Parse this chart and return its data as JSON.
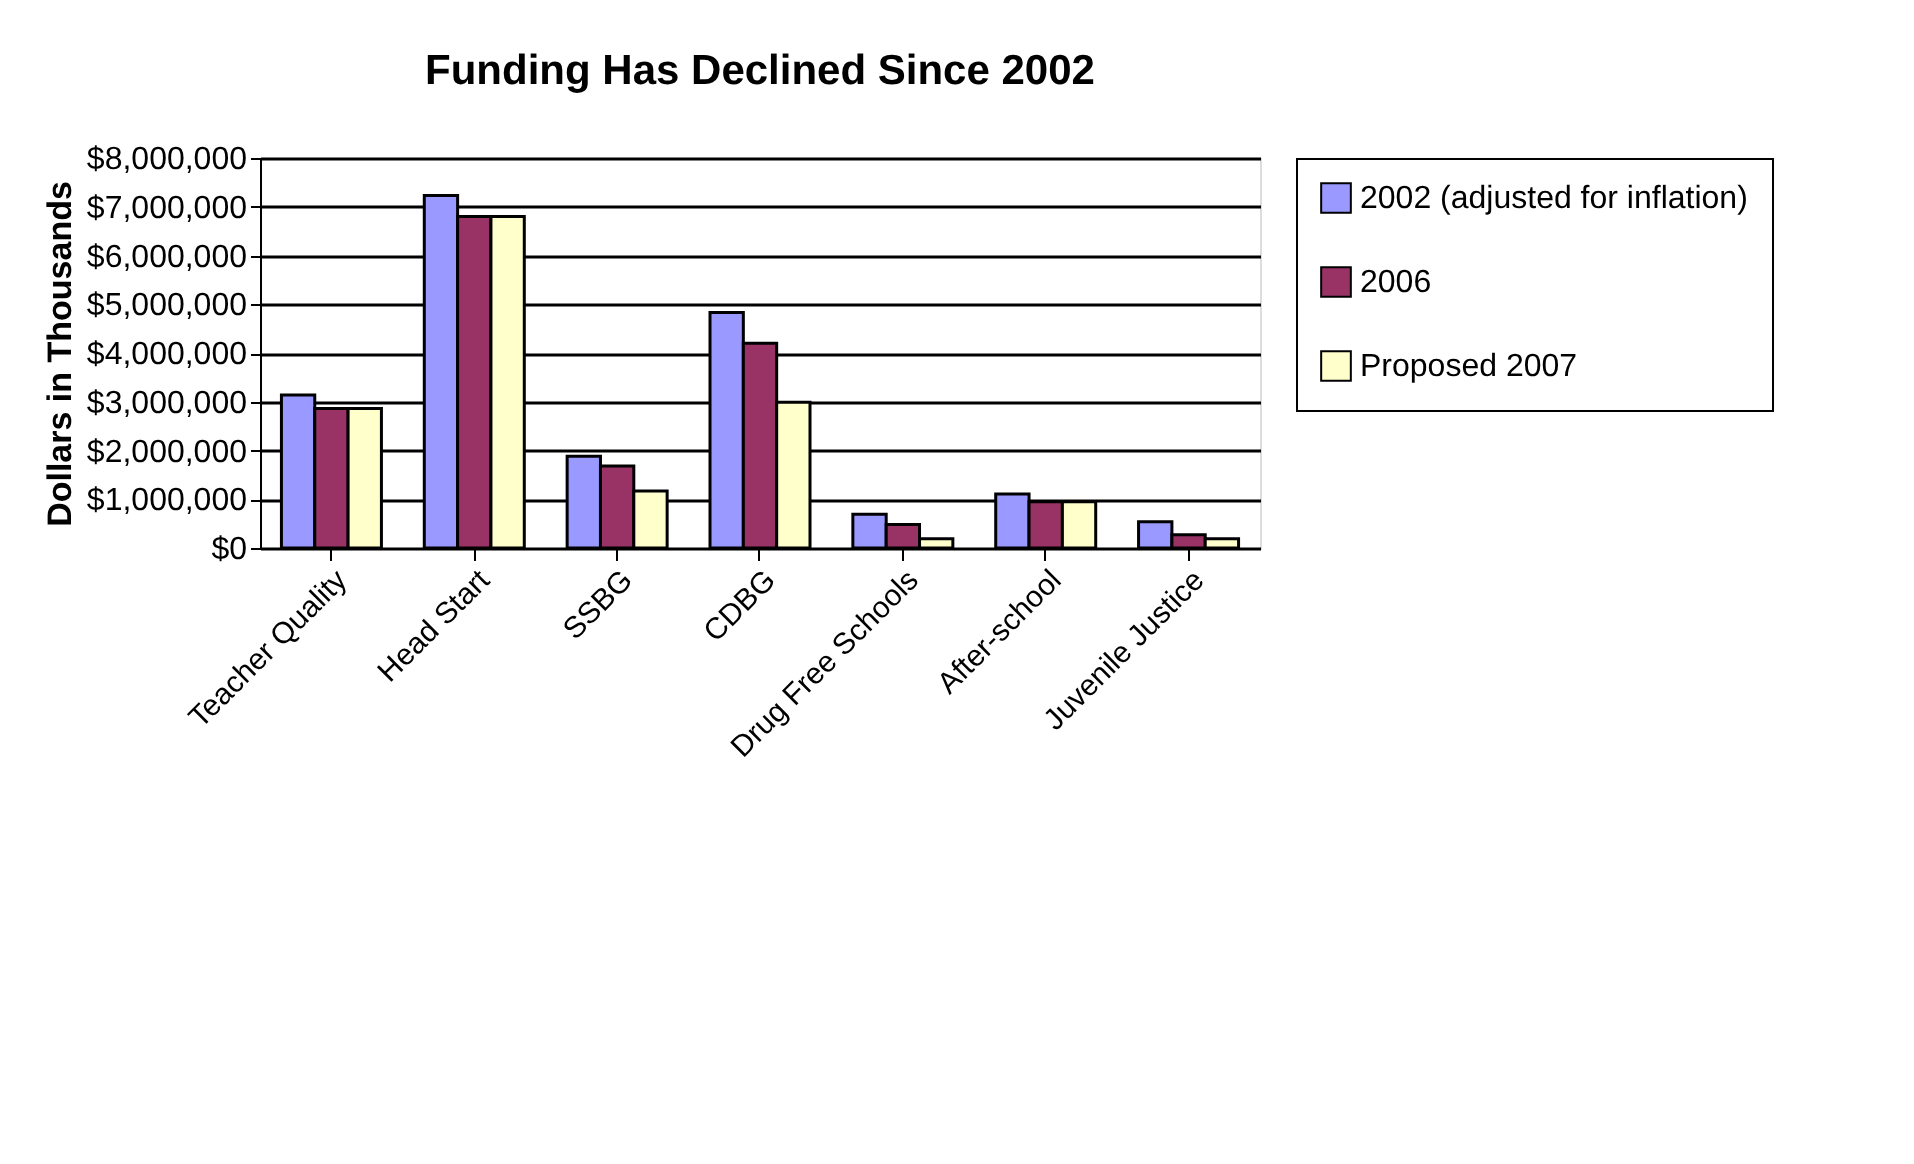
{
  "chart_data": {
    "type": "bar",
    "title": "Funding Has Declined Since 2002",
    "ylabel": "Dollars in Thousands",
    "categories": [
      "Teacher Quality",
      "Head Start",
      "SSBG",
      "CDBG",
      "Drug Free Schools",
      "After-school",
      "Juvenile Justice"
    ],
    "series": [
      {
        "name": "2002 (adjusted for inflation)",
        "color": "#9999ff",
        "values": [
          3140000,
          7230000,
          1880000,
          4830000,
          690000,
          1110000,
          540000
        ]
      },
      {
        "name": "2006",
        "color": "#993366",
        "values": [
          2860000,
          6800000,
          1680000,
          4200000,
          480000,
          950000,
          270000
        ]
      },
      {
        "name": "Proposed 2007",
        "color": "#ffffcc",
        "values": [
          2860000,
          6800000,
          1170000,
          2990000,
          190000,
          950000,
          190000
        ]
      }
    ],
    "ylim": [
      0,
      8000000
    ],
    "yticks": [
      {
        "value": 0,
        "label": "$0"
      },
      {
        "value": 1000000,
        "label": "$1,000,000"
      },
      {
        "value": 2000000,
        "label": "$2,000,000"
      },
      {
        "value": 3000000,
        "label": "$3,000,000"
      },
      {
        "value": 4000000,
        "label": "$4,000,000"
      },
      {
        "value": 5000000,
        "label": "$5,000,000"
      },
      {
        "value": 6000000,
        "label": "$6,000,000"
      },
      {
        "value": 7000000,
        "label": "$7,000,000"
      },
      {
        "value": 8000000,
        "label": "$8,000,000"
      }
    ],
    "grid": "y",
    "legend": "right"
  }
}
